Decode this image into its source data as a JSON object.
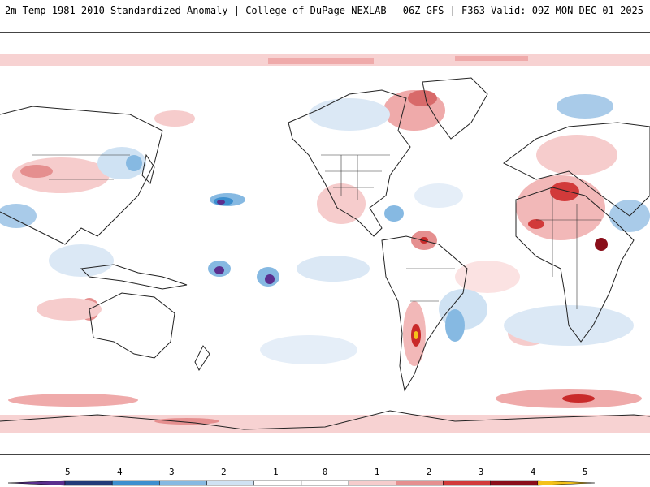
{
  "header": {
    "title": "2m Temp 1981–2010 Standardized Anomaly | College of DuPage NEXLAB",
    "run_info": "06Z GFS | F363 Valid: 09Z MON DEC 01 2025"
  },
  "legend": {
    "ticks": [
      "−5",
      "−4",
      "−3",
      "−2",
      "−1",
      "0",
      "1",
      "2",
      "3",
      "4",
      "5"
    ],
    "colors": [
      "#5b2f8f",
      "#223a78",
      "#3d8fcf",
      "#86b9e2",
      "#cfe2f3",
      "#ffffff",
      "#ffffff",
      "#f6cccc",
      "#e58f8f",
      "#d23a3a",
      "#8a0e1a",
      "#f4c21a"
    ]
  }
}
